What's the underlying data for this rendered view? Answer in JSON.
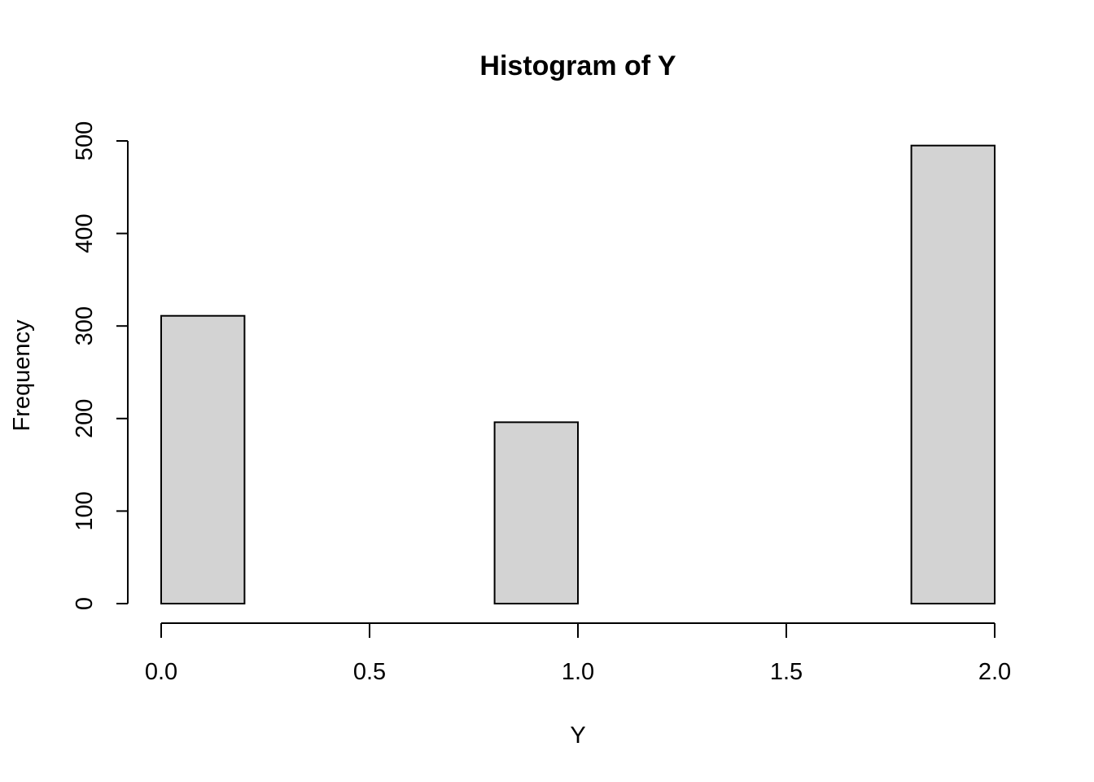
{
  "chart_data": {
    "type": "bar",
    "title": "Histogram of Y",
    "xlabel": "Y",
    "ylabel": "Frequency",
    "bins": [
      {
        "start": 0.0,
        "end": 0.2,
        "count": 311
      },
      {
        "start": 0.2,
        "end": 0.4,
        "count": 0
      },
      {
        "start": 0.4,
        "end": 0.6,
        "count": 0
      },
      {
        "start": 0.6,
        "end": 0.8,
        "count": 0
      },
      {
        "start": 0.8,
        "end": 1.0,
        "count": 196
      },
      {
        "start": 1.0,
        "end": 1.2,
        "count": 0
      },
      {
        "start": 1.2,
        "end": 1.4,
        "count": 0
      },
      {
        "start": 1.4,
        "end": 1.6,
        "count": 0
      },
      {
        "start": 1.6,
        "end": 1.8,
        "count": 0
      },
      {
        "start": 1.8,
        "end": 2.0,
        "count": 495
      }
    ],
    "xlim": [
      0.0,
      2.0
    ],
    "ylim": [
      0,
      500
    ],
    "xticks": [
      "0.0",
      "0.5",
      "1.0",
      "1.5",
      "2.0"
    ],
    "yticks": [
      "0",
      "100",
      "200",
      "300",
      "400",
      "500"
    ],
    "bar_color": "#d3d3d3",
    "grid": false
  }
}
